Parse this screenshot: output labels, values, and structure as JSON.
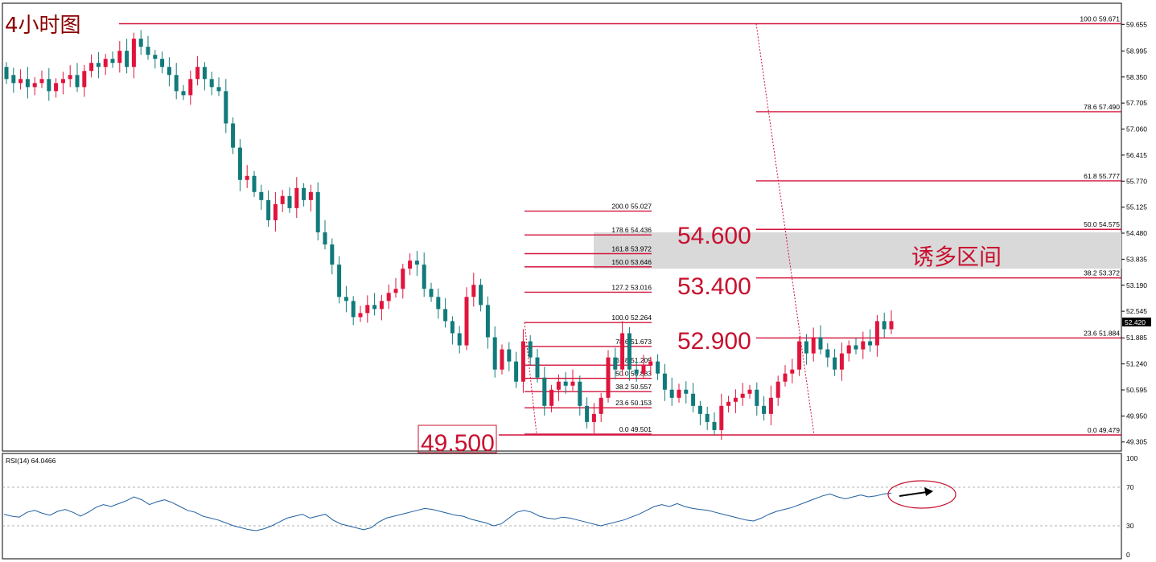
{
  "title": "4小时图",
  "colors": {
    "bull": "#e0143c",
    "bear": "#117a7a",
    "fib": "#d4143c",
    "rsi_line": "#1f5fa0",
    "zone": "#d9d9d9",
    "big_label": "#c8102e",
    "title": "#8b0000",
    "price_tag_bg": "#000000"
  },
  "price_axis": {
    "ticks": [
      "59.655",
      "58.995",
      "58.350",
      "57.705",
      "57.060",
      "56.415",
      "55.770",
      "55.125",
      "54.480",
      "53.835",
      "53.190",
      "52.545",
      "51.885",
      "51.240",
      "50.595",
      "49.950",
      "49.305"
    ],
    "current_price": "52.420"
  },
  "big_labels": {
    "l54600": "54.600",
    "l53400": "53.400",
    "l52900": "52.900",
    "l49500": "49.500"
  },
  "zone_label": "诱多区间",
  "fib_right": [
    {
      "pct": "100.0",
      "price": "59.671"
    },
    {
      "pct": "78.6",
      "price": "57.490"
    },
    {
      "pct": "61.8",
      "price": "55.777"
    },
    {
      "pct": "50.0",
      "price": "54.575"
    },
    {
      "pct": "38.2",
      "price": "53.372"
    },
    {
      "pct": "23.6",
      "price": "51.884"
    },
    {
      "pct": "0.0",
      "price": "49.479"
    }
  ],
  "fib_left": [
    {
      "pct": "200.0",
      "price": "55.027"
    },
    {
      "pct": "178.6",
      "price": "54.436"
    },
    {
      "pct": "161.8",
      "price": "53.972"
    },
    {
      "pct": "150.0",
      "price": "53.646"
    },
    {
      "pct": "127.2",
      "price": "53.016"
    },
    {
      "pct": "100.0",
      "price": "52.264"
    },
    {
      "pct": "78.6",
      "price": "51.673"
    },
    {
      "pct": "61.8",
      "price": "51.209"
    },
    {
      "pct": "50.0",
      "price": "50.883"
    },
    {
      "pct": "38.2",
      "price": "50.557"
    },
    {
      "pct": "23.6",
      "price": "50.153"
    },
    {
      "pct": "0.0",
      "price": "49.501"
    }
  ],
  "rsi": {
    "label": "RSI(14) 64.0466",
    "ticks": [
      "100",
      "70",
      "30",
      "0"
    ]
  },
  "chart_data": {
    "type": "candlestick",
    "title": "4小时图",
    "ylim": [
      49.2,
      59.9
    ],
    "candles": [
      [
        58.6,
        58.3
      ],
      [
        58.4,
        58.2
      ],
      [
        58.2,
        58.3
      ],
      [
        58.3,
        58.1
      ],
      [
        58.1,
        58.2
      ],
      [
        58.2,
        58.3
      ],
      [
        58.3,
        58.0
      ],
      [
        58.0,
        58.2
      ],
      [
        58.2,
        58.3
      ],
      [
        58.3,
        58.4
      ],
      [
        58.4,
        58.1
      ],
      [
        58.1,
        58.5
      ],
      [
        58.5,
        58.7
      ],
      [
        58.7,
        58.6
      ],
      [
        58.6,
        58.8
      ],
      [
        58.8,
        58.7
      ],
      [
        58.7,
        59.0
      ],
      [
        59.0,
        58.6
      ],
      [
        58.6,
        59.3
      ],
      [
        59.3,
        59.1
      ],
      [
        59.1,
        58.9
      ],
      [
        58.9,
        58.8
      ],
      [
        58.8,
        58.6
      ],
      [
        58.6,
        58.4
      ],
      [
        58.4,
        58.0
      ],
      [
        58.0,
        57.9
      ],
      [
        57.9,
        58.3
      ],
      [
        58.3,
        58.6
      ],
      [
        58.6,
        58.3
      ],
      [
        58.3,
        58.1
      ],
      [
        58.1,
        58.0
      ],
      [
        58.0,
        57.2
      ],
      [
        57.2,
        56.6
      ],
      [
        56.6,
        55.8
      ],
      [
        55.8,
        55.9
      ],
      [
        55.9,
        55.5
      ],
      [
        55.5,
        55.3
      ],
      [
        55.3,
        54.8
      ],
      [
        54.8,
        55.2
      ],
      [
        55.2,
        55.4
      ],
      [
        55.4,
        55.1
      ],
      [
        55.1,
        55.6
      ],
      [
        55.6,
        55.3
      ],
      [
        55.3,
        55.5
      ],
      [
        55.5,
        54.5
      ],
      [
        54.5,
        54.2
      ],
      [
        54.2,
        53.7
      ],
      [
        53.7,
        52.9
      ],
      [
        52.9,
        52.8
      ],
      [
        52.8,
        52.4
      ],
      [
        52.4,
        52.5
      ],
      [
        52.5,
        52.7
      ],
      [
        52.7,
        52.6
      ],
      [
        52.6,
        52.8
      ],
      [
        52.8,
        53.0
      ],
      [
        53.0,
        53.1
      ],
      [
        53.1,
        53.6
      ],
      [
        53.6,
        53.8
      ],
      [
        53.8,
        53.7
      ],
      [
        53.7,
        53.1
      ],
      [
        53.1,
        52.9
      ],
      [
        52.9,
        52.6
      ],
      [
        52.6,
        52.3
      ],
      [
        52.3,
        52.0
      ],
      [
        52.0,
        51.7
      ],
      [
        51.7,
        52.9
      ],
      [
        52.9,
        53.2
      ],
      [
        53.2,
        52.7
      ],
      [
        52.7,
        51.9
      ],
      [
        51.9,
        51.1
      ],
      [
        51.1,
        51.6
      ],
      [
        51.6,
        51.3
      ],
      [
        51.3,
        50.8
      ],
      [
        50.8,
        51.8
      ],
      [
        51.8,
        51.4
      ],
      [
        51.4,
        50.9
      ],
      [
        50.9,
        50.2
      ],
      [
        50.2,
        50.6
      ],
      [
        50.6,
        50.8
      ],
      [
        50.8,
        50.7
      ],
      [
        50.7,
        50.8
      ],
      [
        50.8,
        50.2
      ],
      [
        50.2,
        49.8
      ],
      [
        49.8,
        50.0
      ],
      [
        50.0,
        50.4
      ],
      [
        50.4,
        51.4
      ],
      [
        51.4,
        51.1
      ],
      [
        51.1,
        52.0
      ],
      [
        52.0,
        51.1
      ],
      [
        51.1,
        51.0
      ],
      [
        51.0,
        51.2
      ],
      [
        51.2,
        51.3
      ],
      [
        51.3,
        51.0
      ],
      [
        51.0,
        50.6
      ],
      [
        50.6,
        50.4
      ],
      [
        50.4,
        50.6
      ],
      [
        50.6,
        50.5
      ],
      [
        50.5,
        50.2
      ],
      [
        50.2,
        50.0
      ],
      [
        50.0,
        49.8
      ],
      [
        49.8,
        49.6
      ],
      [
        49.6,
        50.2
      ],
      [
        50.2,
        50.3
      ],
      [
        50.3,
        50.4
      ],
      [
        50.4,
        50.5
      ],
      [
        50.5,
        50.6
      ],
      [
        50.6,
        50.2
      ],
      [
        50.2,
        50.0
      ],
      [
        50.0,
        50.4
      ],
      [
        50.4,
        50.8
      ],
      [
        50.8,
        51.0
      ],
      [
        51.0,
        51.1
      ],
      [
        51.1,
        51.8
      ],
      [
        51.8,
        51.5
      ],
      [
        51.5,
        51.9
      ],
      [
        51.9,
        51.6
      ],
      [
        51.6,
        51.4
      ],
      [
        51.4,
        51.1
      ],
      [
        51.1,
        51.5
      ],
      [
        51.5,
        51.7
      ],
      [
        51.7,
        51.6
      ],
      [
        51.6,
        51.8
      ],
      [
        51.8,
        51.7
      ],
      [
        51.7,
        52.3
      ],
      [
        52.3,
        52.1
      ],
      [
        52.1,
        52.3
      ]
    ],
    "fibonacci_right": {
      "prices": [
        59.671,
        57.49,
        55.777,
        54.575,
        53.372,
        51.884,
        49.479
      ]
    },
    "fibonacci_left": {
      "prices": [
        55.027,
        54.436,
        53.972,
        53.646,
        53.016,
        52.264,
        51.673,
        51.209,
        50.883,
        50.557,
        50.153,
        49.501
      ]
    },
    "zone": {
      "from": 53.6,
      "to": 54.5,
      "label": "诱多区间"
    },
    "rsi": {
      "period": 14,
      "last": 64.0466,
      "ylim": [
        0,
        100
      ],
      "levels": [
        70,
        30
      ],
      "values": [
        42,
        40,
        39,
        44,
        46,
        43,
        41,
        45,
        47,
        44,
        40,
        44,
        49,
        52,
        50,
        53,
        56,
        60,
        57,
        52,
        55,
        57,
        54,
        50,
        46,
        44,
        40,
        38,
        36,
        33,
        30,
        28,
        26,
        25,
        27,
        30,
        34,
        38,
        40,
        42,
        38,
        40,
        42,
        36,
        32,
        30,
        28,
        26,
        28,
        34,
        38,
        40,
        42,
        44,
        46,
        48,
        47,
        45,
        43,
        41,
        40,
        37,
        35,
        33,
        30,
        32,
        38,
        44,
        46,
        44,
        40,
        38,
        37,
        39,
        38,
        36,
        34,
        32,
        30,
        32,
        34,
        36,
        39,
        42,
        46,
        50,
        52,
        50,
        53,
        50,
        48,
        47,
        46,
        44,
        42,
        40,
        38,
        36,
        35,
        38,
        42,
        45,
        47,
        49,
        52,
        55,
        58,
        61,
        63,
        60,
        58,
        60,
        62,
        60,
        61,
        63,
        64
      ]
    }
  }
}
